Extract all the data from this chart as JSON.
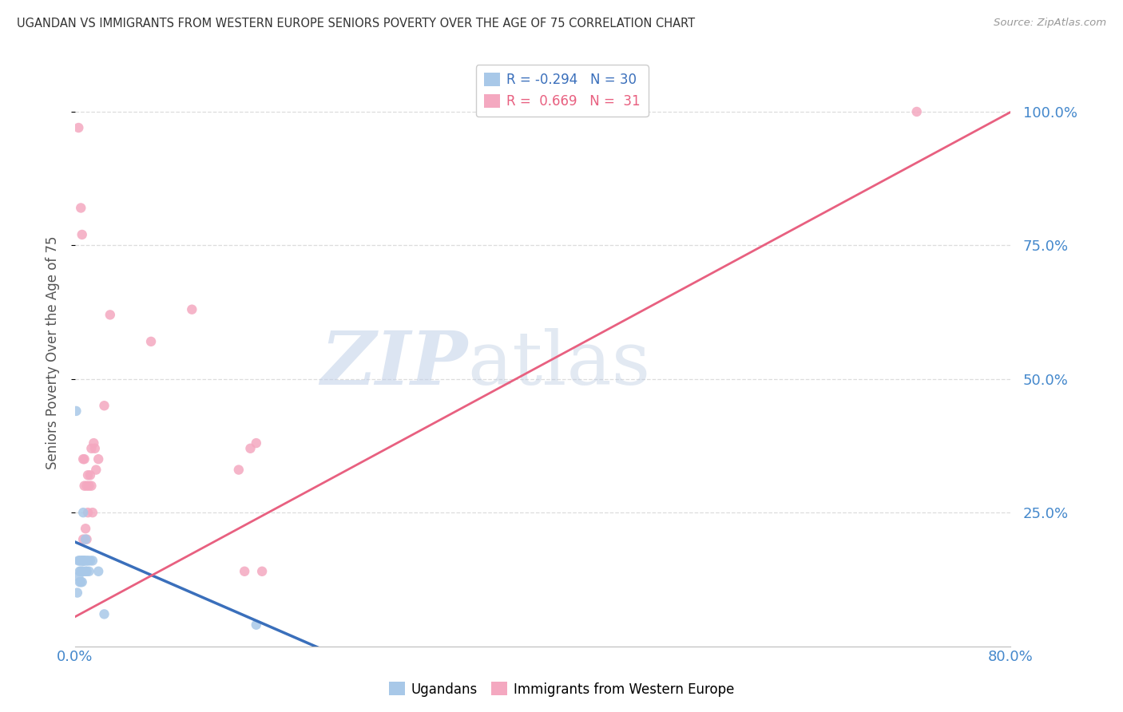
{
  "title": "UGANDAN VS IMMIGRANTS FROM WESTERN EUROPE SENIORS POVERTY OVER THE AGE OF 75 CORRELATION CHART",
  "source": "Source: ZipAtlas.com",
  "ylabel": "Seniors Poverty Over the Age of 75",
  "watermark_zip": "ZIP",
  "watermark_atlas": "atlas",
  "ugandan_x": [
    0.001,
    0.002,
    0.003,
    0.003,
    0.004,
    0.004,
    0.004,
    0.005,
    0.005,
    0.005,
    0.006,
    0.006,
    0.006,
    0.007,
    0.007,
    0.007,
    0.007,
    0.008,
    0.008,
    0.009,
    0.009,
    0.01,
    0.01,
    0.011,
    0.012,
    0.013,
    0.015,
    0.02,
    0.025,
    0.155
  ],
  "ugandan_y": [
    0.44,
    0.1,
    0.13,
    0.16,
    0.14,
    0.12,
    0.16,
    0.12,
    0.14,
    0.16,
    0.12,
    0.14,
    0.16,
    0.16,
    0.14,
    0.16,
    0.25,
    0.16,
    0.16,
    0.2,
    0.14,
    0.14,
    0.16,
    0.16,
    0.14,
    0.16,
    0.16,
    0.14,
    0.06,
    0.04
  ],
  "western_europe_x": [
    0.003,
    0.005,
    0.006,
    0.007,
    0.007,
    0.008,
    0.008,
    0.009,
    0.01,
    0.01,
    0.011,
    0.011,
    0.012,
    0.013,
    0.014,
    0.014,
    0.015,
    0.016,
    0.017,
    0.018,
    0.02,
    0.025,
    0.03,
    0.065,
    0.1,
    0.14,
    0.145,
    0.15,
    0.155,
    0.16,
    0.72
  ],
  "western_europe_y": [
    0.97,
    0.82,
    0.77,
    0.35,
    0.2,
    0.3,
    0.35,
    0.22,
    0.2,
    0.3,
    0.25,
    0.32,
    0.3,
    0.32,
    0.3,
    0.37,
    0.25,
    0.38,
    0.37,
    0.33,
    0.35,
    0.45,
    0.62,
    0.57,
    0.63,
    0.33,
    0.14,
    0.37,
    0.38,
    0.14,
    1.0
  ],
  "ugandan_color": "#a8c8e8",
  "western_europe_color": "#f4a8c0",
  "ugandan_line_color": "#3a6fbb",
  "western_europe_line_color": "#e86080",
  "background_color": "#ffffff",
  "grid_color": "#dddddd",
  "title_color": "#333333",
  "right_tick_color": "#4488cc",
  "marker_size": 80,
  "xlim": [
    0.0,
    0.8
  ],
  "ylim": [
    0.0,
    1.1
  ],
  "yticks": [
    0.25,
    0.5,
    0.75,
    1.0
  ],
  "ytick_labels": [
    "25.0%",
    "50.0%",
    "75.0%",
    "100.0%"
  ],
  "xtick_positions": [
    0.0,
    0.8
  ],
  "xtick_labels": [
    "0.0%",
    "80.0%"
  ],
  "legend_label_1": "R = -0.294   N = 30",
  "legend_label_2": "R =  0.669   N =  31",
  "legend_color_1": "#a8c8e8",
  "legend_color_2": "#f4a8c0",
  "legend_text_color_1": "#3a6fbb",
  "legend_text_color_2": "#e86080",
  "bottom_legend_label_1": "Ugandans",
  "bottom_legend_label_2": "Immigrants from Western Europe",
  "ugandan_line_x": [
    0.0,
    0.21
  ],
  "western_europe_line_x": [
    0.0,
    0.8
  ],
  "ugandan_line_intercept": 0.195,
  "ugandan_line_slope": -0.95,
  "western_europe_line_intercept": 0.055,
  "western_europe_line_slope": 1.18
}
